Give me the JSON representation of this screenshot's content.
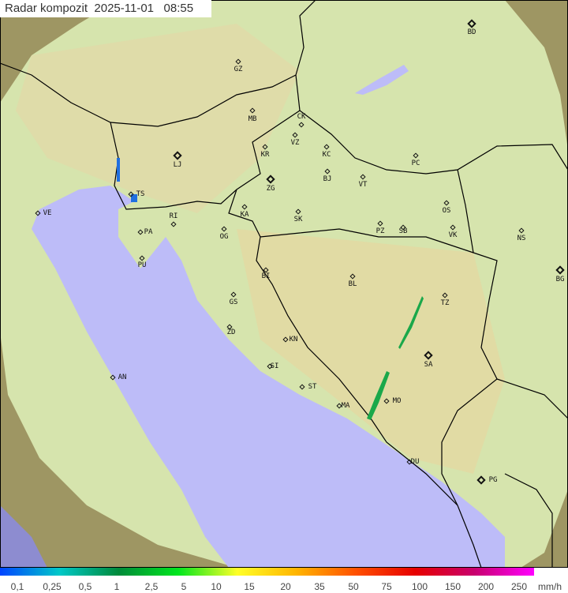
{
  "header": {
    "title": "Radar kompozit",
    "date": "2025-11-01",
    "time": "08:55"
  },
  "colors": {
    "sea": "#bdbcf8",
    "land_in_coverage": "#d9e6b0",
    "land_outside": "#a39a66",
    "border": "#000000",
    "radar_echo": "#1aa84a"
  },
  "cities": [
    {
      "code": "GZ",
      "major": false
    },
    {
      "code": "BD",
      "major": true
    },
    {
      "code": "MB",
      "major": false
    },
    {
      "code": "CK",
      "major": false
    },
    {
      "code": "VZ",
      "major": false
    },
    {
      "code": "KR",
      "major": false
    },
    {
      "code": "LJ",
      "major": true
    },
    {
      "code": "KC",
      "major": false
    },
    {
      "code": "PC",
      "major": false
    },
    {
      "code": "BJ",
      "major": false
    },
    {
      "code": "VT",
      "major": false
    },
    {
      "code": "ZG",
      "major": true
    },
    {
      "code": "TS",
      "major": false
    },
    {
      "code": "VE",
      "major": false
    },
    {
      "code": "RI",
      "major": false
    },
    {
      "code": "KA",
      "major": false
    },
    {
      "code": "SK",
      "major": false
    },
    {
      "code": "OS",
      "major": false
    },
    {
      "code": "PA",
      "major": false
    },
    {
      "code": "PZ",
      "major": false
    },
    {
      "code": "SB",
      "major": false
    },
    {
      "code": "VK",
      "major": false
    },
    {
      "code": "NS",
      "major": false
    },
    {
      "code": "OG",
      "major": false
    },
    {
      "code": "PU",
      "major": false
    },
    {
      "code": "BG",
      "major": true
    },
    {
      "code": "BI",
      "major": false
    },
    {
      "code": "BL",
      "major": false
    },
    {
      "code": "GS",
      "major": false
    },
    {
      "code": "TZ",
      "major": false
    },
    {
      "code": "ZD",
      "major": false
    },
    {
      "code": "KN",
      "major": false
    },
    {
      "code": "SA",
      "major": true
    },
    {
      "code": "SI",
      "major": false
    },
    {
      "code": "AN",
      "major": false
    },
    {
      "code": "ST",
      "major": false
    },
    {
      "code": "MO",
      "major": false
    },
    {
      "code": "MA",
      "major": false
    },
    {
      "code": "DU",
      "major": false
    },
    {
      "code": "PG",
      "major": true
    }
  ],
  "legend": {
    "unit": "mm/h",
    "ticks": [
      "0,1",
      "0,25",
      "0,5",
      "1",
      "2,5",
      "5",
      "10",
      "15",
      "20",
      "35",
      "50",
      "75",
      "100",
      "150",
      "200",
      "250"
    ],
    "gradient": [
      "#0044ff",
      "#00c8c8",
      "#008a3a",
      "#00e61e",
      "#ffff28",
      "#ffb400",
      "#ff5000",
      "#e60000",
      "#c8006e",
      "#ff00ff"
    ]
  }
}
